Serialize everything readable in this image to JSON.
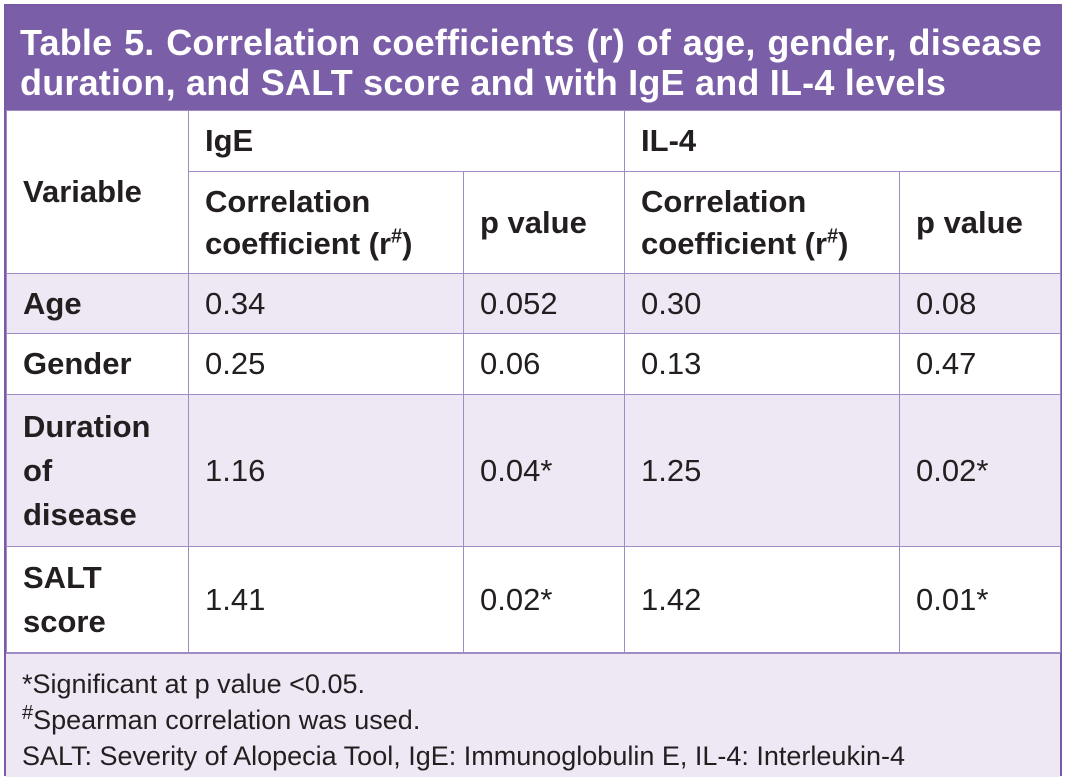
{
  "title": "Table 5. Correlation coefficients (r) of age, gender, disease duration, and SALT score and with IgE and IL-4 levels",
  "header": {
    "variable": "Variable",
    "ige": "IgE",
    "il4": "IL-4",
    "corr_text": "Correlation coefficient (r",
    "corr_sup": "#",
    "corr_close": ")",
    "pvalue": "p value"
  },
  "rows": [
    {
      "variable": "Age",
      "ige_r": "0.34",
      "ige_p": "0.052",
      "il4_r": "0.30",
      "il4_p": "0.08"
    },
    {
      "variable": "Gender",
      "ige_r": "0.25",
      "ige_p": "0.06",
      "il4_r": "0.13",
      "il4_p": "0.47"
    },
    {
      "variable": "Duration of disease",
      "ige_r": "1.16",
      "ige_p": "0.04*",
      "il4_r": "1.25",
      "il4_p": "0.02*"
    },
    {
      "variable": "SALT score",
      "ige_r": "1.41",
      "ige_p": "0.02*",
      "il4_r": "1.42",
      "il4_p": "0.01*"
    }
  ],
  "notes": {
    "note1": "*Significant at p value <0.05.",
    "note2_sup": "#",
    "note2": "Spearman correlation was used.",
    "note3": "SALT: Severity of Alopecia Tool, IgE: Immunoglobulin E, IL-4: Interleukin-4"
  },
  "colors": {
    "header_band": "#7b5ea8",
    "row_tint": "#ede8f4",
    "grid": "#a08cc4"
  }
}
